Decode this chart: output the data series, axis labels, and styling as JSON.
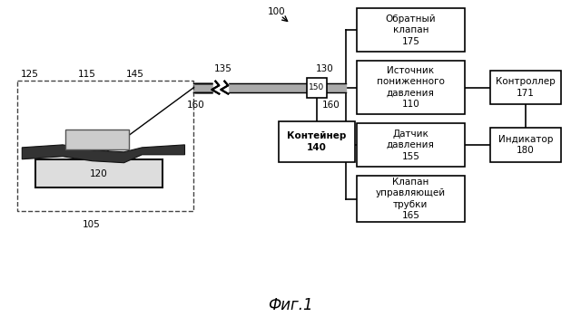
{
  "title": "Фиг.1",
  "box_obratny": "Обратный\nклапан\n175",
  "box_istochnik": "Источник\nпониженного\nдавления\n110",
  "box_datchik": "Датчик\nдавления\n155",
  "box_klapan": "Клапан\nуправляющей\nтрубки\n165",
  "box_konteyner": "Контейнер\n140",
  "box_kontroler": "Контроллер\n171",
  "box_indikator": "Индикатор\n180",
  "lbl_100": "100",
  "lbl_105": "105",
  "lbl_115": "115",
  "lbl_120": "120",
  "lbl_125": "125",
  "lbl_130": "130",
  "lbl_135": "135",
  "lbl_145": "145",
  "lbl_150": "150",
  "lbl_160a": "160",
  "lbl_160b": "160"
}
